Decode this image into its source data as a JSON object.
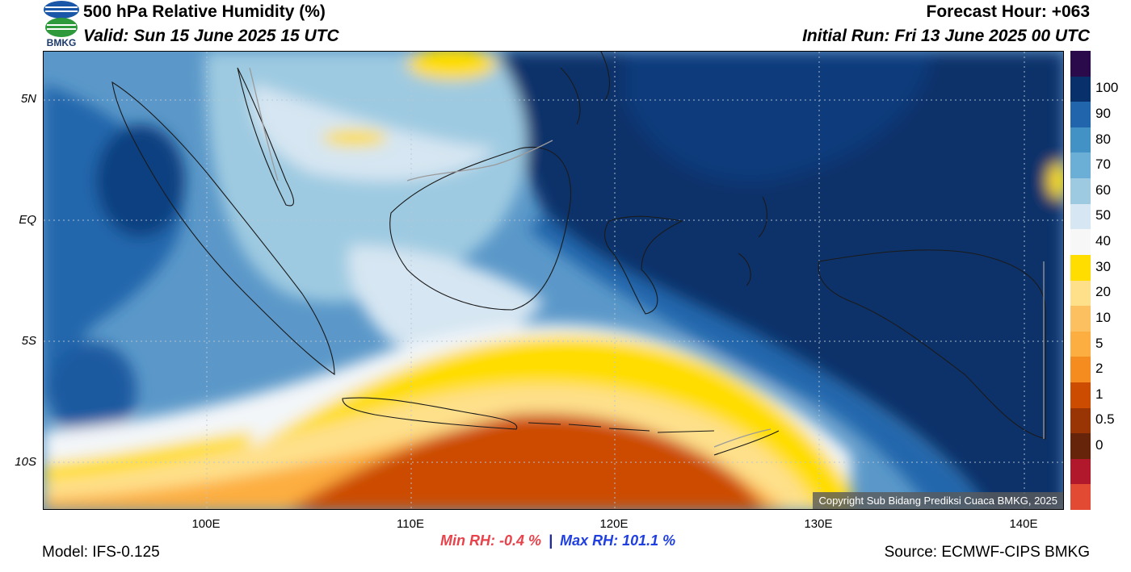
{
  "header": {
    "title": "500 hPa Relative Humidity (%)",
    "valid": "Valid: Sun 15 June 2025 15 UTC",
    "forecast_hour": "Forecast Hour: +063",
    "initial_run": "Initial Run: Fri 13 June 2025 00 UTC",
    "logo_text": "BMKG"
  },
  "map": {
    "lat_labels": [
      "5N",
      "EQ",
      "5S",
      "10S"
    ],
    "lon_labels": [
      "100E",
      "110E",
      "120E",
      "130E",
      "140E"
    ],
    "copyright": "Copyright Sub Bidang Prediksi Cuaca BMKG, 2025"
  },
  "colorbar": {
    "labels": [
      "100",
      "90",
      "80",
      "70",
      "60",
      "50",
      "40",
      "30",
      "20",
      "10",
      "5",
      "2",
      "1",
      "0.5",
      "0"
    ],
    "colors": [
      "#2a0a4a",
      "#08306b",
      "#2166ac",
      "#4292c6",
      "#6baed6",
      "#9ecae1",
      "#d6e6f2",
      "#f7f7f7",
      "#ffdd00",
      "#fee08b",
      "#fdc060",
      "#fdae40",
      "#f48c20",
      "#cc4c02",
      "#993404",
      "#66250a",
      "#b2182b",
      "#e34a33"
    ]
  },
  "stats": {
    "min_rh": "Min RH:  -0.4 %",
    "separator": "|",
    "max_rh": "Max RH: 101.1 %"
  },
  "footer": {
    "model": "Model: IFS-0.125",
    "source": "Source: ECMWF-CIPS BMKG"
  }
}
